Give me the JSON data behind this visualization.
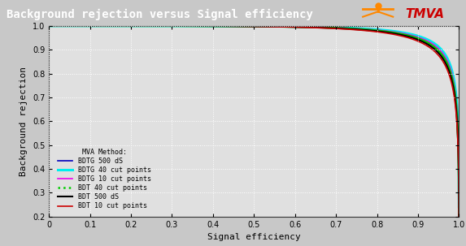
{
  "title": "Background rejection versus Signal efficiency",
  "xlabel": "Signal efficiency",
  "ylabel": "Background rejection",
  "xlim": [
    0,
    1.0
  ],
  "ylim": [
    0.2,
    1.0
  ],
  "xticks": [
    0,
    0.1,
    0.2,
    0.3,
    0.4,
    0.5,
    0.6,
    0.7,
    0.8,
    0.9,
    1.0
  ],
  "yticks": [
    0.2,
    0.3,
    0.4,
    0.5,
    0.6,
    0.7,
    0.8,
    0.9,
    1.0
  ],
  "background_color": "#c8c8c8",
  "plot_bg_color": "#e0e0e0",
  "title_bg_color": "#6080a0",
  "grid_color": "#ffffff",
  "curves": [
    {
      "label": "BDTG 500 dS",
      "color": "#0000bb",
      "lw": 1.2,
      "ls": "-",
      "alpha": 1.0,
      "a": 0.18,
      "b": 0.18
    },
    {
      "label": "BDTG 40 cut points",
      "color": "#00eeee",
      "lw": 2.2,
      "ls": "-",
      "alpha": 1.0,
      "a": 0.18,
      "b": 0.18
    },
    {
      "label": "BDTG 10 cut points",
      "color": "#ee00ee",
      "lw": 1.2,
      "ls": "-",
      "alpha": 1.0,
      "a": 0.19,
      "b": 0.19
    },
    {
      "label": "BDT 40 cut points",
      "color": "#00cc00",
      "lw": 1.8,
      "ls": "-",
      "alpha": 1.0,
      "a": 0.2,
      "b": 0.2
    },
    {
      "label": "BDT 500 dS",
      "color": "#000000",
      "lw": 1.5,
      "ls": "-",
      "alpha": 1.0,
      "a": 0.21,
      "b": 0.21
    },
    {
      "label": "BDT 10 cut points",
      "color": "#cc0000",
      "lw": 1.2,
      "ls": "-",
      "alpha": 1.0,
      "a": 0.22,
      "b": 0.22
    }
  ],
  "legend_title": "MVA Method:",
  "legend_title_fontsize": 6,
  "legend_fontsize": 6,
  "title_fontsize": 10,
  "axis_label_fontsize": 8,
  "tick_fontsize": 7
}
